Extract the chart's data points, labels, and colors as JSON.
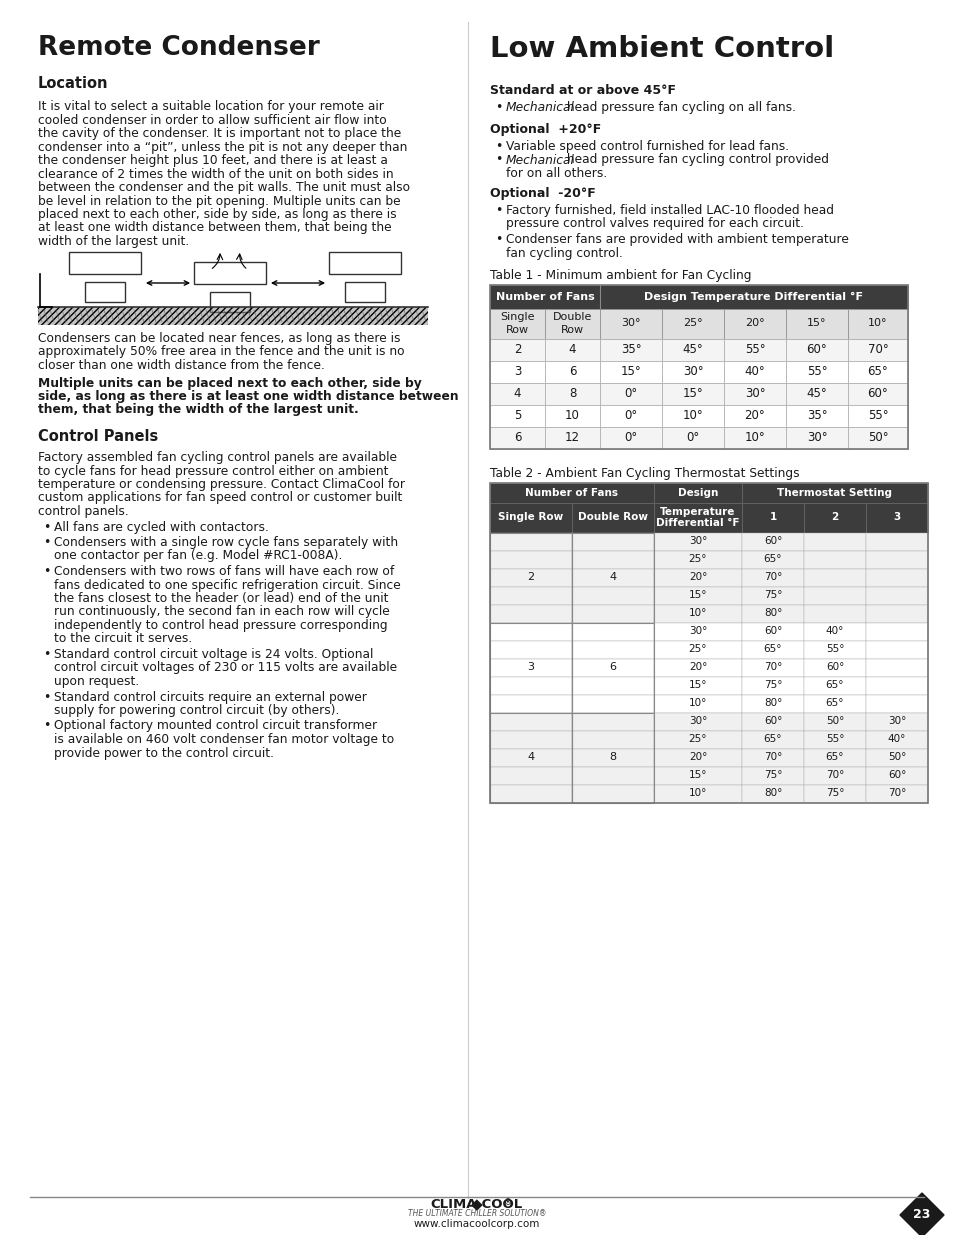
{
  "page_bg": "#ffffff",
  "left_title": "Remote Condenser",
  "left_subtitle": "Location",
  "left_body": "It is vital to select a suitable location for your remote air cooled condenser in order to allow sufficient air flow into the cavity of the condenser. It is important not to place the condenser into a “pit”, unless the pit is not any deeper than the condenser height plus 10 feet, and there is at least a clearance of 2 times the width of the unit on both sides in between the condenser and the pit walls. The unit must also be level in relation to the pit opening. Multiple units can be placed next to each other, side by side, as long as there is at least one width distance between them, that being the width of the largest unit.",
  "left_body2": "Condensers can be located near fences, as long as there is approximately 50% free area in the fence and the unit is no closer than one width distance from the fence.",
  "left_body3_bold": "Multiple units can be placed next to each other, side by side, as long as there is at least one width distance between them, that being the width of the largest unit.",
  "left_subtitle2": "Control Panels",
  "left_body4": "Factory assembled fan cycling control panels are available to cycle fans for head pressure control either on ambient temperature or condensing pressure. Contact ClimaCool for custom applications for fan speed control or customer built control panels.",
  "bullet1": "All fans are cycled with contactors.",
  "bullet2": "Condensers with a single row cycle fans separately with one contactor per fan (e.g. Model #RC1-008A).",
  "bullet3": "Condensers with two rows of fans will have each row of fans dedicated to one specific refrigeration circuit. Since the fans closest to the header (or lead) end of the unit run continuously, the second fan in each row will cycle independently to control head pressure corresponding to the circuit it serves.",
  "bullet4": "Standard control circuit voltage is 24 volts. Optional control circuit voltages of 230 or 115 volts are available upon request.",
  "bullet5": "Standard control circuits require an external power supply for powering control circuit (by others).",
  "bullet6": "Optional factory mounted control circuit transformer is available on 460 volt condenser fan motor voltage to provide power to the control circuit.",
  "right_title": "Low Ambient Control",
  "right_sec1_bold": "Standard at or above 45°F",
  "right_sec2_bold": "Optional  +20°F",
  "right_sec3_bold": "Optional  -20°F",
  "table1_title": "Table 1 - Minimum ambient for Fan Cycling",
  "table1_header_row2": [
    "Single\nRow",
    "Double\nRow",
    "30°",
    "25°",
    "20°",
    "15°",
    "10°"
  ],
  "table1_data": [
    [
      "2",
      "4",
      "35°",
      "45°",
      "55°",
      "60°",
      "70°"
    ],
    [
      "3",
      "6",
      "15°",
      "30°",
      "40°",
      "55°",
      "65°"
    ],
    [
      "4",
      "8",
      "0°",
      "15°",
      "30°",
      "45°",
      "60°"
    ],
    [
      "5",
      "10",
      "0°",
      "10°",
      "20°",
      "35°",
      "55°"
    ],
    [
      "6",
      "12",
      "0°",
      "0°",
      "10°",
      "30°",
      "50°"
    ]
  ],
  "table2_title": "Table 2 - Ambient Fan Cycling Thermostat Settings",
  "table2_data": [
    [
      "30°",
      "60°",
      "",
      ""
    ],
    [
      "25°",
      "65°",
      "",
      ""
    ],
    [
      "20°",
      "70°",
      "",
      ""
    ],
    [
      "15°",
      "75°",
      "",
      ""
    ],
    [
      "10°",
      "80°",
      "",
      ""
    ],
    [
      "30°",
      "60°",
      "40°",
      ""
    ],
    [
      "25°",
      "65°",
      "55°",
      ""
    ],
    [
      "20°",
      "70°",
      "60°",
      ""
    ],
    [
      "15°",
      "75°",
      "65°",
      ""
    ],
    [
      "10°",
      "80°",
      "65°",
      ""
    ],
    [
      "30°",
      "60°",
      "50°",
      "30°"
    ],
    [
      "25°",
      "65°",
      "55°",
      "40°"
    ],
    [
      "20°",
      "70°",
      "65°",
      "50°"
    ],
    [
      "15°",
      "75°",
      "70°",
      "60°"
    ],
    [
      "10°",
      "80°",
      "75°",
      "70°"
    ]
  ],
  "table2_groups": [
    [
      "2",
      "4"
    ],
    [
      "3",
      "6"
    ],
    [
      "4",
      "8"
    ]
  ],
  "footer_page": "23",
  "footer_website": "www.climacoolcorp.com",
  "table_header_bg": "#3c3c3c",
  "table_header_color": "#ffffff"
}
